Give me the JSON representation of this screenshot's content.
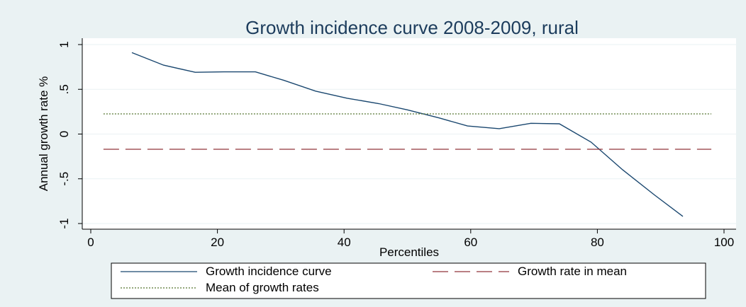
{
  "chart_data": {
    "type": "line",
    "title": "Growth incidence curve 2008-2009, rural",
    "xlabel": "Percentiles",
    "ylabel": "Annual growth rate %",
    "xlim": [
      0,
      100
    ],
    "ylim": [
      -1.05,
      1.05
    ],
    "xticks": [
      "0",
      "20",
      "40",
      "60",
      "80",
      "100"
    ],
    "yticks": [
      "-1",
      "-.5",
      "0",
      ".5",
      "1"
    ],
    "grid": "horizontal",
    "legend_position": "bottom",
    "series": [
      {
        "name": "Growth incidence curve",
        "style": "solid",
        "color": "#1a476f",
        "x": [
          6.5,
          11.5,
          16.5,
          21,
          26,
          30.5,
          35.5,
          40.5,
          45.5,
          50,
          55,
          59.5,
          64.5,
          69.5,
          74,
          79,
          84,
          89,
          93.5
        ],
        "y": [
          0.91,
          0.77,
          0.69,
          0.695,
          0.695,
          0.6,
          0.48,
          0.4,
          0.34,
          0.27,
          0.18,
          0.09,
          0.06,
          0.12,
          0.115,
          -0.09,
          -0.4,
          -0.68,
          -0.92
        ]
      },
      {
        "name": "Growth rate in mean",
        "style": "dashed",
        "color": "#90353b",
        "x": [
          2,
          98
        ],
        "y": [
          -0.17,
          -0.17
        ]
      },
      {
        "name": "Mean of growth rates",
        "style": "dotted",
        "color": "#55752f",
        "x": [
          2,
          98
        ],
        "y": [
          0.225,
          0.225
        ]
      }
    ]
  }
}
